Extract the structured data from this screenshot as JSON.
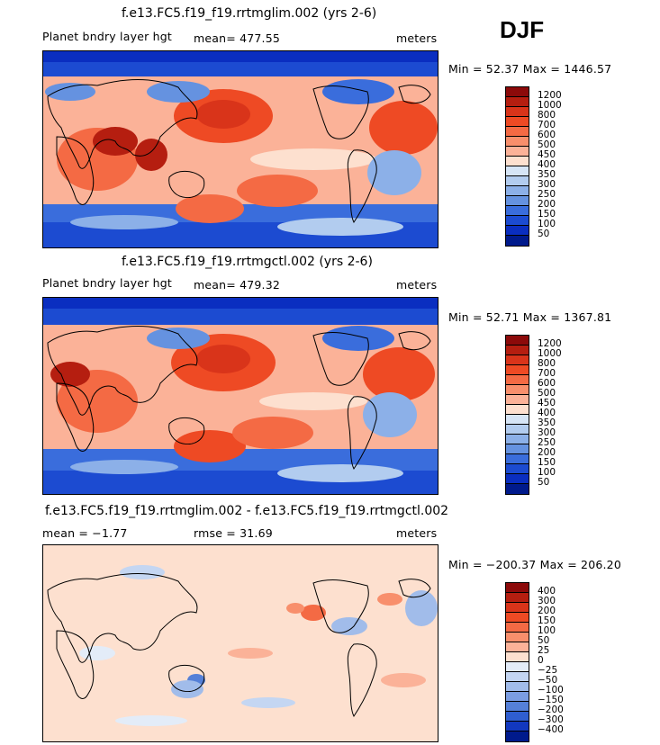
{
  "season": "DJF",
  "panels": [
    {
      "title": "f.e13.FC5.f19_f19.rrtmglim.002 (yrs 2-6)",
      "variable": "Planet bndry layer hgt",
      "stat": "mean= 477.55",
      "units": "meters",
      "minmax": "Min =  52.37 Max = 1446.57",
      "levels": [
        "1200",
        "1000",
        "800",
        "700",
        "600",
        "500",
        "450",
        "400",
        "350",
        "300",
        "250",
        "200",
        "150",
        "100",
        "50"
      ]
    },
    {
      "title": "f.e13.FC5.f19_f19.rrtmgctl.002 (yrs 2-6)",
      "variable": "Planet bndry layer hgt",
      "stat": "mean= 479.32",
      "units": "meters",
      "minmax": "Min =  52.71 Max = 1367.81",
      "levels": [
        "1200",
        "1000",
        "800",
        "700",
        "600",
        "500",
        "450",
        "400",
        "350",
        "300",
        "250",
        "200",
        "150",
        "100",
        "50"
      ]
    },
    {
      "title": "f.e13.FC5.f19_f19.rrtmglim.002 - f.e13.FC5.f19_f19.rrtmgctl.002",
      "variable": "mean =  −1.77",
      "stat": "rmse =  31.69",
      "units": "meters",
      "minmax": "Min = −200.37 Max = 206.20",
      "levels": [
        "400",
        "300",
        "200",
        "150",
        "100",
        "50",
        "25",
        "0",
        "−25",
        "−50",
        "−100",
        "−150",
        "−200",
        "−300",
        "−400"
      ]
    }
  ],
  "colors": {
    "abs_scale": [
      "#8c0a0a",
      "#b51e10",
      "#d9341a",
      "#ee4a24",
      "#f46a44",
      "#f88f6c",
      "#fbb298",
      "#fde0cf",
      "#d6e5f6",
      "#b2ccef",
      "#8cb0e8",
      "#6592e0",
      "#3a6ddc",
      "#1c4bd1",
      "#0a2ec0",
      "#001a8c"
    ],
    "diff_scale": [
      "#8c0a0a",
      "#b51e10",
      "#d9341a",
      "#ee4a24",
      "#f46a44",
      "#f88f6c",
      "#fbb298",
      "#fde0cf",
      "#e3ecf8",
      "#c4d6f2",
      "#a1bcea",
      "#7b9de2",
      "#5580d8",
      "#2f5ed0",
      "#1238bf",
      "#001a8c"
    ]
  }
}
